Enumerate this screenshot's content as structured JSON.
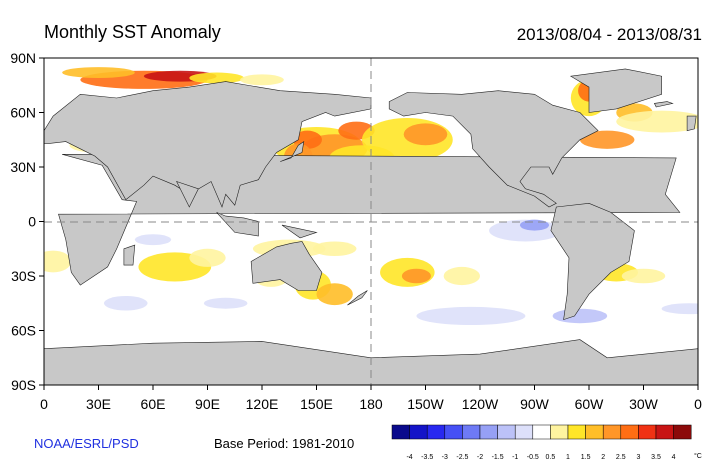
{
  "header": {
    "title": "Monthly SST Anomaly",
    "date_range": "2013/08/04 - 2013/08/31"
  },
  "footer": {
    "credit": "NOAA/ESRL/PSD",
    "base_period": "Base Period: 1981-2010"
  },
  "map": {
    "lat_labels": [
      "90N",
      "60N",
      "30N",
      "0",
      "30S",
      "60S",
      "90S"
    ],
    "lon_labels": [
      "0",
      "30E",
      "60E",
      "90E",
      "120E",
      "150E",
      "180",
      "150W",
      "120W",
      "90W",
      "60W",
      "30W",
      "0"
    ],
    "land_color": "#c8c8c8",
    "ocean_color": "#ffffff"
  },
  "colorbar": {
    "labels": [
      "-4",
      "-3.5",
      "-3",
      "-2.5",
      "-2",
      "-1.5",
      "-1",
      "-0.5",
      "0.5",
      "1",
      "1.5",
      "2",
      "2.5",
      "3",
      "3.5",
      "4"
    ],
    "colors": [
      "#0a0a8c",
      "#1414c8",
      "#2828f0",
      "#4650f5",
      "#6e7af5",
      "#96a0f5",
      "#bcc2f8",
      "#dde0fa",
      "#ffffff",
      "#fff4a0",
      "#ffe628",
      "#ffbe28",
      "#ff9628",
      "#ff6e14",
      "#f03214",
      "#c81414",
      "#8c0a0a"
    ],
    "unit": "°C"
  }
}
